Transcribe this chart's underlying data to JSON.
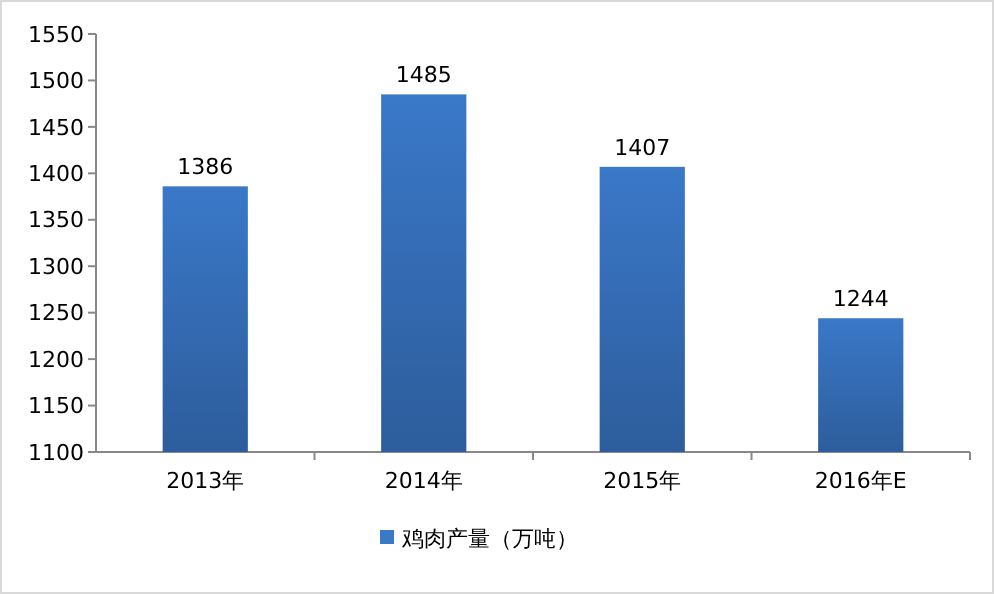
{
  "chart_data": {
    "type": "bar",
    "categories": [
      "2013年",
      "2014年",
      "2015年",
      "2016年E"
    ],
    "series": [
      {
        "name": "鸡肉产量（万吨）",
        "color": "#3a78c8",
        "values": [
          1386,
          1485,
          1407,
          1244
        ]
      }
    ],
    "ylim": [
      1100,
      1550
    ],
    "yticks": [
      1100,
      1150,
      1200,
      1250,
      1300,
      1350,
      1400,
      1450,
      1500,
      1550
    ],
    "data_labels": true,
    "legend": "bottom",
    "grid": false
  }
}
